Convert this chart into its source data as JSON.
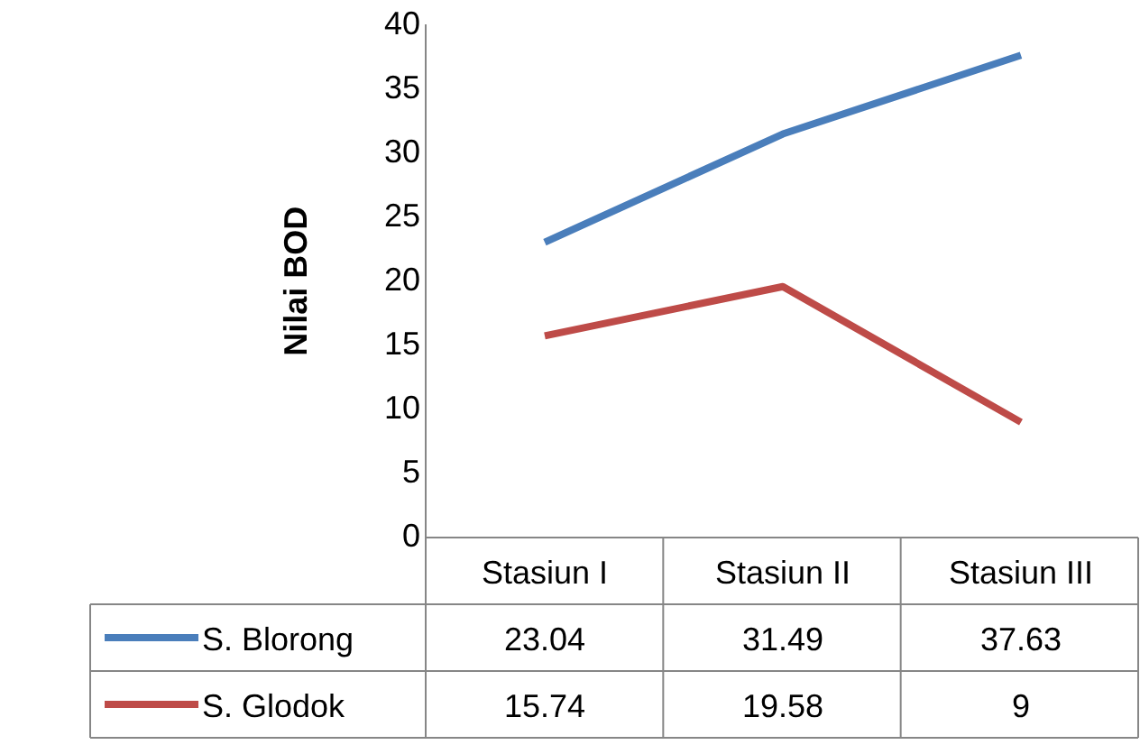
{
  "chart_data": {
    "type": "line",
    "ylabel": "Nilai BOD",
    "categories": [
      "Stasiun I",
      "Stasiun II",
      "Stasiun III"
    ],
    "series": [
      {
        "name": "S. Blorong",
        "color": "#4a7ebb",
        "values": [
          23.04,
          31.49,
          37.63
        ]
      },
      {
        "name": "S. Glodok",
        "color": "#be4b48",
        "values": [
          15.74,
          19.58,
          9
        ]
      }
    ],
    "ylim": [
      0,
      40
    ],
    "yticks": [
      0,
      5,
      10,
      15,
      20,
      25,
      30,
      35,
      40
    ],
    "grid": false,
    "legend": "bottom",
    "marker": "none",
    "data_labels": true
  }
}
